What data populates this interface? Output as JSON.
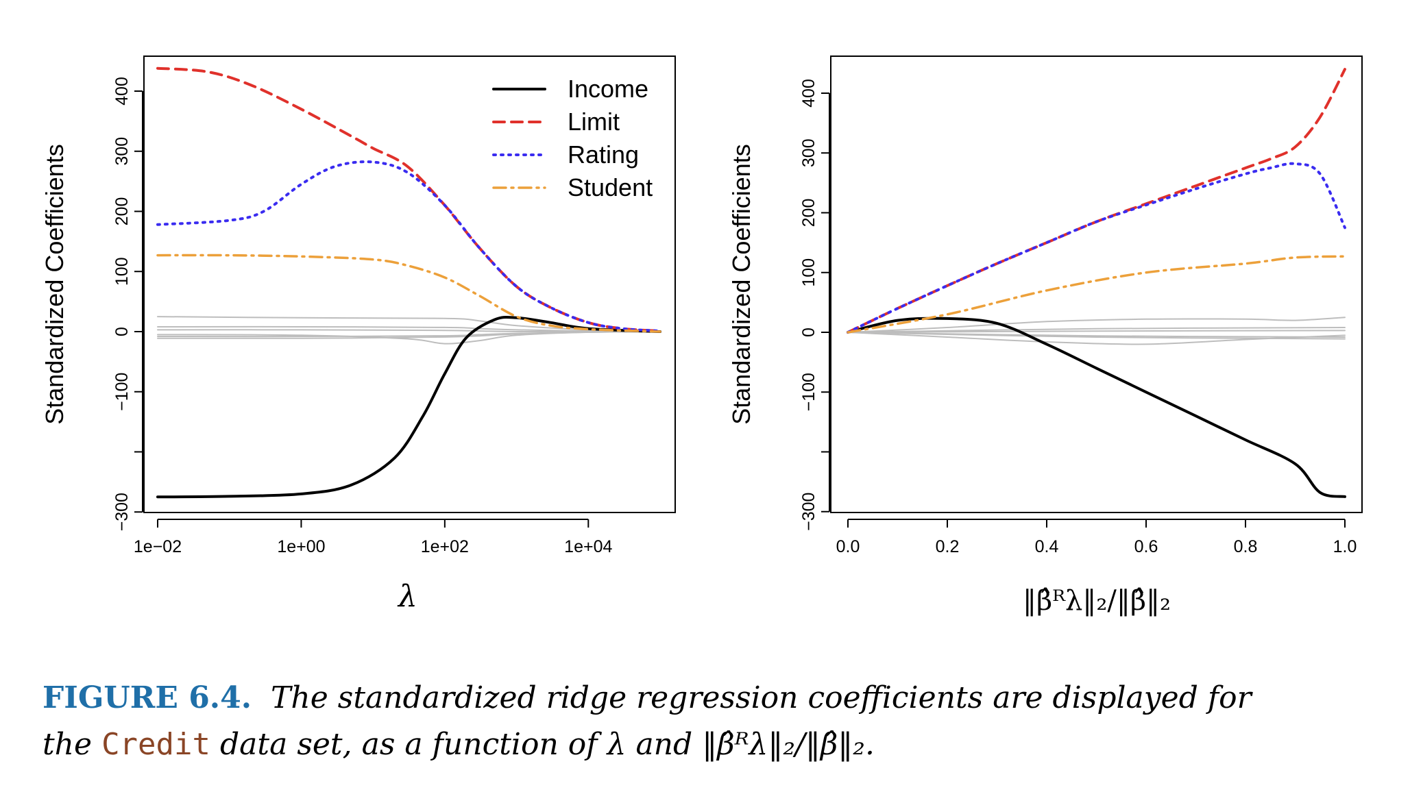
{
  "colors": {
    "Income": "#000000",
    "Limit": "#e0312b",
    "Rating": "#3a2cf0",
    "Student": "#eca03a",
    "other": "#bdbdbd",
    "caption_label": "#1f6fa8",
    "caption_code": "#8a4526"
  },
  "caption": {
    "label": "FIGURE 6.4.",
    "text1": "The standardized ridge regression coefficients are displayed for",
    "text2_pre": "the",
    "code": "Credit",
    "text2_mid": "data set, as a function of",
    "lambda_symbol": "λ",
    "and": "and",
    "norm_expr": "‖β̂ᴿλ‖₂/‖β̂‖₂",
    "period": "."
  },
  "chart_data": [
    {
      "type": "line",
      "x_scale": "log10",
      "xlabel": "λ",
      "ylabel": "Standardized Coefficients",
      "xlim": [
        0.01,
        100000
      ],
      "ylim": [
        -300,
        450
      ],
      "xticks": [
        0.01,
        1,
        100,
        10000
      ],
      "xtick_labels": [
        "1e−02",
        "1e+00",
        "1e+02",
        "1e+04"
      ],
      "yticks": [
        -300,
        -100,
        0,
        100,
        200,
        300,
        400
      ],
      "ytick_labels": [
        "−300",
        "−100",
        "0",
        "100",
        "200",
        "300",
        "400"
      ],
      "legend": {
        "position": "top-right",
        "entries": [
          "Income",
          "Limit",
          "Rating",
          "Student"
        ]
      },
      "series": [
        {
          "name": "Income",
          "x": [
            0.01,
            0.1,
            1,
            5,
            20,
            50,
            100,
            200,
            500,
            1000,
            3000,
            10000,
            100000
          ],
          "y": [
            -275,
            -274,
            -270,
            -255,
            -210,
            -140,
            -70,
            -10,
            20,
            23,
            15,
            5,
            0
          ]
        },
        {
          "name": "Limit",
          "x": [
            0.01,
            0.05,
            0.2,
            1,
            5,
            10,
            30,
            100,
            300,
            1000,
            3000,
            10000,
            30000,
            100000
          ],
          "y": [
            438,
            432,
            410,
            370,
            325,
            305,
            275,
            210,
            140,
            75,
            40,
            15,
            5,
            1
          ]
        },
        {
          "name": "Rating",
          "x": [
            0.01,
            0.1,
            0.3,
            1,
            3,
            10,
            30,
            100,
            300,
            1000,
            3000,
            10000,
            30000,
            100000
          ],
          "y": [
            178,
            185,
            200,
            245,
            275,
            282,
            265,
            210,
            140,
            75,
            40,
            15,
            5,
            1
          ]
        },
        {
          "name": "Student",
          "x": [
            0.01,
            0.1,
            1,
            10,
            30,
            100,
            300,
            1000,
            3000,
            10000,
            100000
          ],
          "y": [
            127,
            127,
            125,
            120,
            110,
            90,
            60,
            25,
            10,
            4,
            0
          ]
        },
        {
          "x": [
            0.01,
            1,
            100,
            300,
            1000,
            10000,
            100000
          ],
          "y": [
            25,
            23,
            22,
            18,
            10,
            3,
            0
          ]
        },
        {
          "x": [
            0.01,
            1,
            100,
            300,
            1000,
            10000,
            100000
          ],
          "y": [
            8,
            8,
            7,
            5,
            3,
            1,
            0
          ]
        },
        {
          "x": [
            0.01,
            1,
            100,
            300,
            1000,
            10000,
            100000
          ],
          "y": [
            3,
            3,
            2,
            1,
            0,
            0,
            0
          ]
        },
        {
          "x": [
            0.01,
            1,
            30,
            100,
            300,
            1000,
            10000,
            100000
          ],
          "y": [
            -5,
            -6,
            -12,
            -20,
            -15,
            -6,
            -1,
            0
          ]
        },
        {
          "x": [
            0.01,
            1,
            100,
            300,
            1000,
            10000,
            100000
          ],
          "y": [
            -8,
            -8,
            -7,
            -5,
            -3,
            -1,
            0
          ]
        },
        {
          "x": [
            0.01,
            1,
            100,
            1000,
            10000,
            100000
          ],
          "y": [
            -11,
            -11,
            -9,
            -4,
            -1,
            0
          ]
        }
      ]
    },
    {
      "type": "line",
      "xlabel": "‖β̂ᴿλ‖₂/‖β̂‖₂",
      "ylabel": "Standardized Coefficients",
      "xlim": [
        0,
        1
      ],
      "ylim": [
        -300,
        450
      ],
      "xticks": [
        0,
        0.2,
        0.4,
        0.6,
        0.8,
        1
      ],
      "xtick_labels": [
        "0.0",
        "0.2",
        "0.4",
        "0.6",
        "0.8",
        "1.0"
      ],
      "yticks": [
        -300,
        -100,
        0,
        100,
        200,
        300,
        400
      ],
      "ytick_labels": [
        "−300",
        "−100",
        "0",
        "100",
        "200",
        "300",
        "400"
      ],
      "series": [
        {
          "name": "Income",
          "x": [
            0,
            0.1,
            0.2,
            0.3,
            0.4,
            0.5,
            0.6,
            0.7,
            0.8,
            0.9,
            0.95,
            1.0
          ],
          "y": [
            0,
            20,
            23,
            15,
            -20,
            -60,
            -100,
            -140,
            -180,
            -220,
            -268,
            -275
          ]
        },
        {
          "name": "Limit",
          "x": [
            0,
            0.1,
            0.2,
            0.3,
            0.4,
            0.5,
            0.6,
            0.7,
            0.8,
            0.85,
            0.9,
            0.95,
            1.0
          ],
          "y": [
            0,
            40,
            78,
            115,
            150,
            185,
            215,
            245,
            275,
            290,
            310,
            360,
            440
          ]
        },
        {
          "name": "Rating",
          "x": [
            0,
            0.1,
            0.2,
            0.3,
            0.4,
            0.5,
            0.6,
            0.7,
            0.8,
            0.85,
            0.9,
            0.95,
            1.0
          ],
          "y": [
            0,
            40,
            78,
            115,
            150,
            185,
            213,
            240,
            265,
            275,
            282,
            265,
            175
          ]
        },
        {
          "name": "Student",
          "x": [
            0,
            0.2,
            0.4,
            0.6,
            0.8,
            0.9,
            1.0
          ],
          "y": [
            0,
            30,
            70,
            100,
            115,
            125,
            127
          ]
        },
        {
          "x": [
            0,
            0.2,
            0.4,
            0.6,
            0.8,
            0.9,
            1.0
          ],
          "y": [
            0,
            8,
            18,
            22,
            22,
            20,
            25
          ]
        },
        {
          "x": [
            0,
            0.5,
            1.0
          ],
          "y": [
            0,
            6,
            8
          ]
        },
        {
          "x": [
            0,
            0.5,
            1.0
          ],
          "y": [
            0,
            2,
            3
          ]
        },
        {
          "x": [
            0,
            0.2,
            0.4,
            0.6,
            0.8,
            1.0
          ],
          "y": [
            0,
            -8,
            -16,
            -20,
            -12,
            -5
          ]
        },
        {
          "x": [
            0,
            0.5,
            1.0
          ],
          "y": [
            0,
            -6,
            -8
          ]
        },
        {
          "x": [
            0,
            0.5,
            1.0
          ],
          "y": [
            0,
            -8,
            -11
          ]
        }
      ]
    }
  ]
}
